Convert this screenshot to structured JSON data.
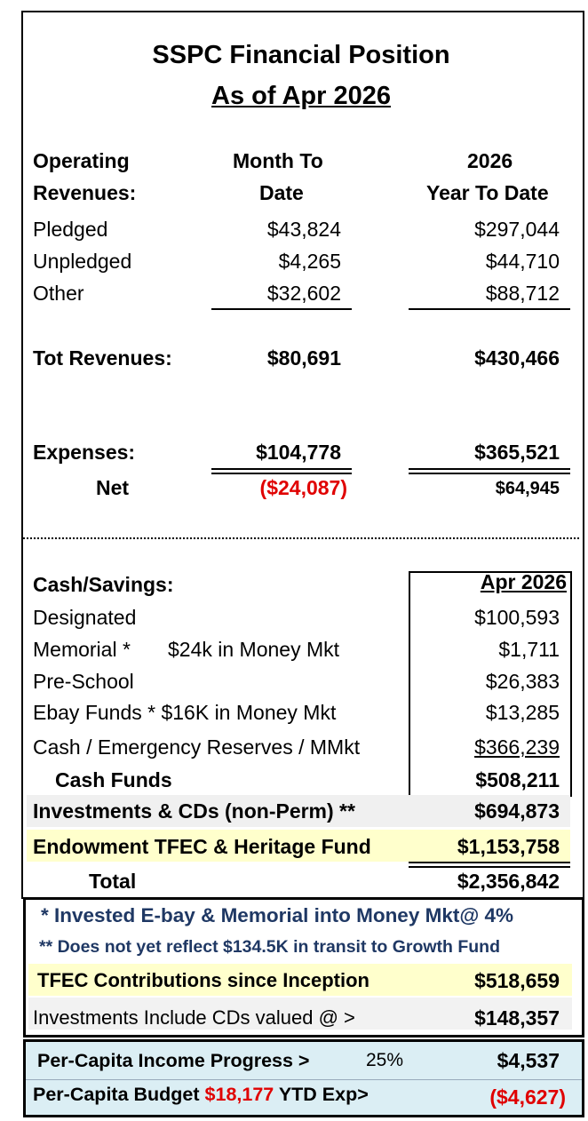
{
  "title": "SSPC Financial Position",
  "subtitle": "As of Apr 2026",
  "operating": {
    "label_line1": "Operating",
    "label_line2": "Revenues:",
    "col1_line1": "Month To",
    "col1_line2": "Date",
    "col2_line1": "2026",
    "col2_line2": "Year To Date",
    "rows": [
      {
        "label": "Pledged",
        "mtd": "$43,824",
        "ytd": "$297,044"
      },
      {
        "label": "Unpledged",
        "mtd": "$4,265",
        "ytd": "$44,710"
      },
      {
        "label": "Other",
        "mtd": "$32,602",
        "ytd": "$88,712"
      }
    ],
    "total_label": "Tot Revenues:",
    "total_mtd": "$80,691",
    "total_ytd": "$430,466",
    "expenses_label": "Expenses:",
    "expenses_mtd": "$104,778",
    "expenses_ytd": "$365,521",
    "net_label": "Net",
    "net_mtd": "($24,087)",
    "net_ytd": "$64,945"
  },
  "cash": {
    "label": "Cash/Savings:",
    "column_header": "Apr 2026",
    "rows": [
      {
        "label": "Designated",
        "note": "",
        "value": "$100,593"
      },
      {
        "label": "Memorial *",
        "note": "$24k in Money Mkt",
        "value": "$1,711"
      },
      {
        "label": "Pre-School",
        "note": "",
        "value": "$26,383"
      },
      {
        "label": "Ebay Funds * $16K in Money Mkt",
        "note": "",
        "value": "$13,285"
      },
      {
        "label": "Cash / Emergency Reserves / MMkt",
        "note": "",
        "value": "$366,239"
      }
    ],
    "cash_funds_label": "Cash Funds",
    "cash_funds_value": "$508,211",
    "investments_label": "Investments & CDs  (non-Perm) **",
    "investments_value": "$694,873",
    "endowment_label": "Endowment TFEC & Heritage Fund",
    "endowment_value": "$1,153,758",
    "total_label": "Total",
    "total_value": "$2,356,842"
  },
  "notes": {
    "note1": "* Invested E-bay & Memorial into Money Mkt@ 4%",
    "note2": "** Does not yet reflect $134.5K in transit to Growth Fund",
    "tfec_label": "TFEC Contributions since Inception",
    "tfec_value": "$518,659",
    "cds_label": "Investments Include CDs valued @ >",
    "cds_value": "$148,357"
  },
  "per_capita": {
    "progress_label": "Per-Capita Income Progress >",
    "progress_pct": "25%",
    "progress_value": "$4,537",
    "budget_label_a": "Per-Capita Budget ",
    "budget_amount": "$18,177",
    "budget_label_b": " YTD Exp>",
    "budget_value": "($4,627)"
  },
  "colors": {
    "red": "#e00000",
    "navy": "#1f3864",
    "yellow_band": "#ffffcc",
    "gray_band": "#f0f0f0",
    "blue_band": "#dbeef4"
  }
}
